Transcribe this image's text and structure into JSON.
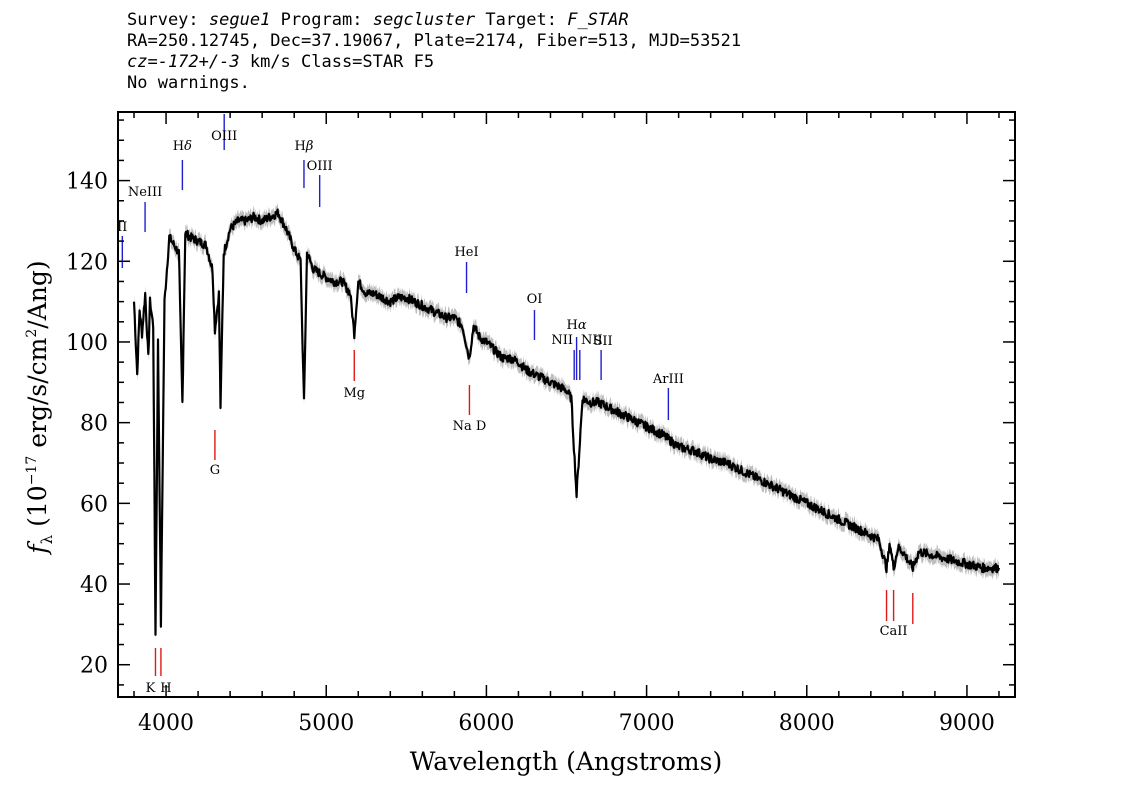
{
  "header": {
    "line1": {
      "survey_label": "Survey:",
      "survey": "segue1",
      "program_label": "Program:",
      "program": "segcluster",
      "target_label": "Target:",
      "target": "F_STAR"
    },
    "line2": "RA=250.12745, Dec=37.19067, Plate=2174, Fiber=513, MJD=53521",
    "line3": {
      "cz": "cz=-172+/-3",
      "rest": " km/s Class=STAR F5"
    },
    "line4": "No warnings."
  },
  "chart_data": {
    "type": "line",
    "xlabel": "Wavelength (Angstroms)",
    "ylabel": "f_λ (10^-17 erg/s/cm^2/Ang)",
    "xlim": [
      3700,
      9300
    ],
    "ylim": [
      12,
      157
    ],
    "x_ticks": [
      4000,
      5000,
      6000,
      7000,
      8000,
      9000
    ],
    "y_ticks": [
      20,
      40,
      60,
      80,
      100,
      120,
      140
    ],
    "grid": false,
    "colors": {
      "spectrum": "#000000",
      "error_band": "#bdbdbd",
      "emission_lines": "#1f1fd0",
      "absorption_lines": "#e01818"
    },
    "series": [
      {
        "x": [
          3800,
          3820,
          3835,
          3850,
          3870,
          3889,
          3900,
          3920,
          3934,
          3950,
          3968,
          3990,
          4020,
          4050,
          4080,
          4102,
          4120,
          4150,
          4200,
          4250,
          4290,
          4305,
          4330,
          4340,
          4360,
          4400,
          4450,
          4500,
          4550,
          4600,
          4650,
          4700,
          4750,
          4800,
          4840,
          4861,
          4880,
          4920,
          4960,
          5000,
          5050,
          5100,
          5150,
          5175,
          5200,
          5250,
          5300,
          5350,
          5400,
          5450,
          5500,
          5550,
          5600,
          5650,
          5700,
          5750,
          5800,
          5850,
          5893,
          5920,
          5960,
          6000,
          6050,
          6100,
          6150,
          6200,
          6250,
          6300,
          6350,
          6400,
          6450,
          6500,
          6530,
          6563,
          6600,
          6650,
          6700,
          6750,
          6800,
          6850,
          6900,
          6950,
          7000,
          7100,
          7200,
          7300,
          7400,
          7500,
          7600,
          7700,
          7800,
          7900,
          8000,
          8100,
          8200,
          8300,
          8400,
          8450,
          8498,
          8520,
          8542,
          8570,
          8600,
          8662,
          8700,
          8800,
          8900,
          9000,
          9100,
          9200
        ],
        "y": [
          110,
          92,
          108,
          102,
          112,
          96,
          110,
          104,
          28,
          100,
          30,
          110,
          126,
          124,
          122,
          85,
          127,
          126,
          125,
          124,
          118,
          103,
          112,
          84,
          122,
          128,
          130,
          130,
          131,
          130,
          131,
          132,
          128,
          123,
          120,
          85,
          122,
          118,
          117,
          116,
          115,
          115,
          112,
          102,
          115,
          112,
          112,
          111,
          110,
          111,
          111,
          110,
          109,
          108,
          107,
          106,
          106,
          104,
          96,
          104,
          101,
          100,
          98,
          96,
          96,
          95,
          93,
          92,
          91,
          90,
          89,
          88,
          86,
          62,
          86,
          85,
          85,
          84,
          83,
          82,
          81,
          80,
          79,
          77,
          74,
          73,
          71,
          70,
          68,
          66,
          64,
          62,
          60,
          58,
          56,
          54,
          52,
          51,
          44,
          50,
          44,
          49,
          48,
          44,
          48,
          47,
          46,
          45,
          44,
          44
        ]
      }
    ],
    "line_labels": [
      {
        "text": "Hδ",
        "wavelength": 4102,
        "kind": "emission"
      },
      {
        "text": "OIII",
        "wavelength": 4363,
        "kind": "emission"
      },
      {
        "text": "NeIII",
        "wavelength": 3869,
        "kind": "emission"
      },
      {
        "text": "II",
        "wavelength": 3727,
        "kind": "emission"
      },
      {
        "text": "Hβ",
        "wavelength": 4861,
        "kind": "emission"
      },
      {
        "text": "OIII",
        "wavelength": 4959,
        "kind": "emission"
      },
      {
        "text": "HeI",
        "wavelength": 5876,
        "kind": "emission"
      },
      {
        "text": "OI",
        "wavelength": 6300,
        "kind": "emission"
      },
      {
        "text": "Hα",
        "wavelength": 6563,
        "kind": "emission"
      },
      {
        "text": "NII",
        "wavelength": 6548,
        "kind": "emission"
      },
      {
        "text": "NII",
        "wavelength": 6583,
        "kind": "emission"
      },
      {
        "text": "SII",
        "wavelength": 6716,
        "kind": "emission"
      },
      {
        "text": "ArIII",
        "wavelength": 7136,
        "kind": "emission"
      },
      {
        "text": "G",
        "wavelength": 4305,
        "kind": "absorption"
      },
      {
        "text": "Mg",
        "wavelength": 5175,
        "kind": "absorption"
      },
      {
        "text": "Na D",
        "wavelength": 5894,
        "kind": "absorption"
      },
      {
        "text": "K",
        "wavelength": 3934,
        "kind": "absorption"
      },
      {
        "text": "H",
        "wavelength": 3968,
        "kind": "absorption"
      },
      {
        "text": "CaII",
        "wavelength": 8542,
        "kind": "absorption"
      }
    ]
  }
}
